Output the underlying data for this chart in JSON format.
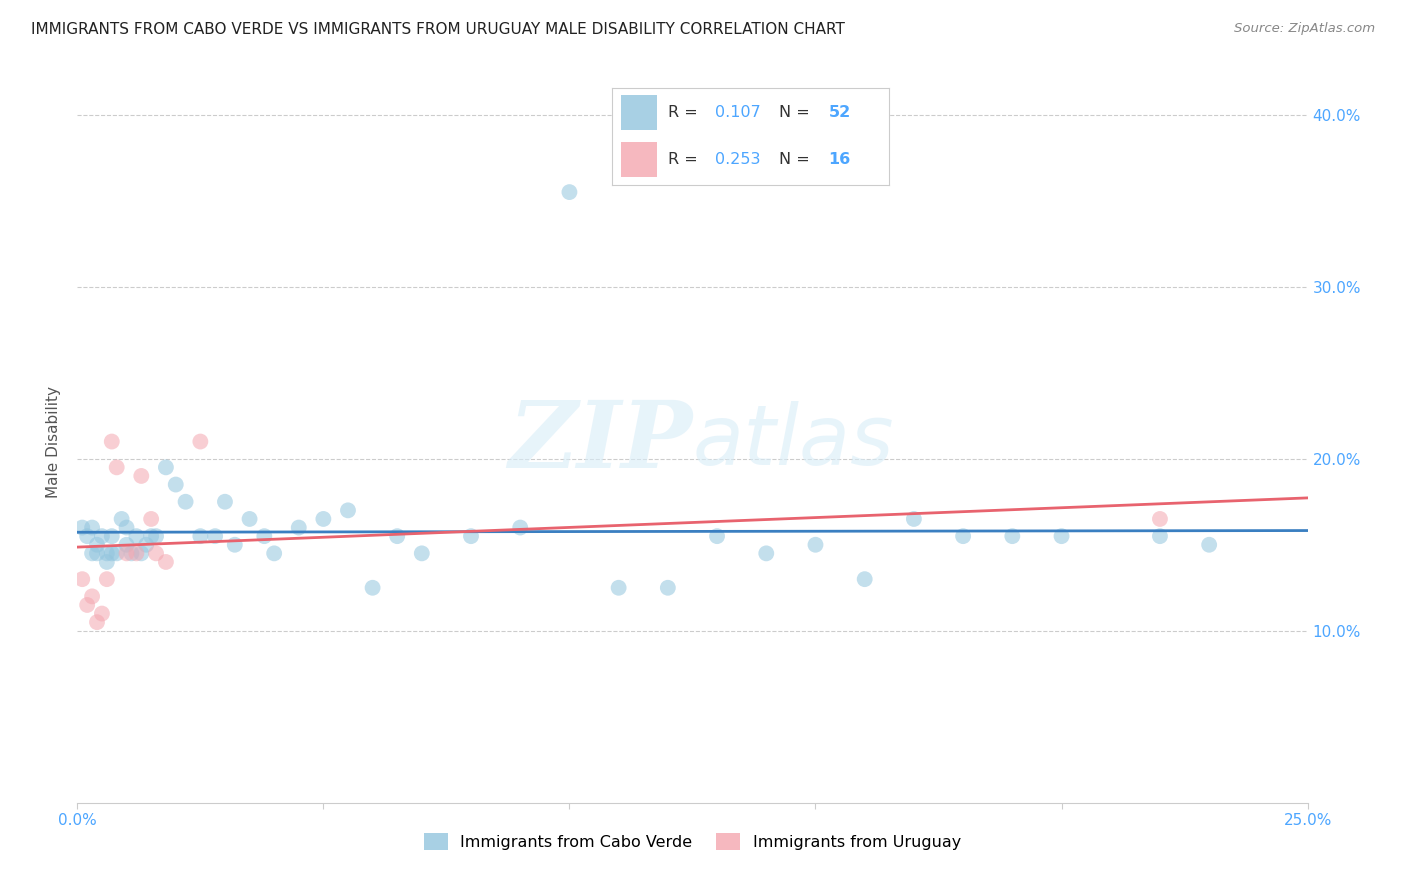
{
  "title": "IMMIGRANTS FROM CABO VERDE VS IMMIGRANTS FROM URUGUAY MALE DISABILITY CORRELATION CHART",
  "source": "Source: ZipAtlas.com",
  "ylabel": "Male Disability",
  "xlim": [
    0.0,
    0.25
  ],
  "ylim": [
    0.0,
    0.42
  ],
  "xticks": [
    0.0,
    0.05,
    0.1,
    0.15,
    0.2,
    0.25
  ],
  "yticks": [
    0.1,
    0.2,
    0.3,
    0.4
  ],
  "cabo_verde_R": 0.107,
  "cabo_verde_N": 52,
  "uruguay_R": 0.253,
  "uruguay_N": 16,
  "cabo_verde_color": "#92c5de",
  "uruguay_color": "#f4a6b0",
  "trendline_cabo_color": "#3a7fc1",
  "trendline_uruguay_color": "#e8636e",
  "legend_text_color": "#4da6ff",
  "legend_label_color": "#333333",
  "cabo_verde_x": [
    0.001,
    0.002,
    0.003,
    0.003,
    0.004,
    0.004,
    0.005,
    0.006,
    0.006,
    0.007,
    0.007,
    0.008,
    0.009,
    0.01,
    0.01,
    0.011,
    0.012,
    0.013,
    0.014,
    0.015,
    0.016,
    0.018,
    0.02,
    0.022,
    0.025,
    0.028,
    0.03,
    0.032,
    0.035,
    0.038,
    0.04,
    0.045,
    0.05,
    0.055,
    0.06,
    0.065,
    0.07,
    0.08,
    0.09,
    0.1,
    0.11,
    0.12,
    0.13,
    0.14,
    0.15,
    0.16,
    0.17,
    0.18,
    0.19,
    0.2,
    0.22,
    0.23
  ],
  "cabo_verde_y": [
    0.16,
    0.155,
    0.16,
    0.145,
    0.145,
    0.15,
    0.155,
    0.145,
    0.14,
    0.155,
    0.145,
    0.145,
    0.165,
    0.16,
    0.15,
    0.145,
    0.155,
    0.145,
    0.15,
    0.155,
    0.155,
    0.195,
    0.185,
    0.175,
    0.155,
    0.155,
    0.175,
    0.15,
    0.165,
    0.155,
    0.145,
    0.16,
    0.165,
    0.17,
    0.125,
    0.155,
    0.145,
    0.155,
    0.16,
    0.355,
    0.125,
    0.125,
    0.155,
    0.145,
    0.15,
    0.13,
    0.165,
    0.155,
    0.155,
    0.155,
    0.155,
    0.15
  ],
  "uruguay_x": [
    0.001,
    0.002,
    0.003,
    0.004,
    0.005,
    0.006,
    0.007,
    0.008,
    0.01,
    0.012,
    0.013,
    0.015,
    0.016,
    0.018,
    0.025,
    0.22
  ],
  "uruguay_y": [
    0.13,
    0.115,
    0.12,
    0.105,
    0.11,
    0.13,
    0.21,
    0.195,
    0.145,
    0.145,
    0.19,
    0.165,
    0.145,
    0.14,
    0.21,
    0.165
  ],
  "watermark_zip": "ZIP",
  "watermark_atlas": "atlas",
  "marker_size": 130,
  "alpha": 0.55,
  "trendline_lw": 2.0
}
